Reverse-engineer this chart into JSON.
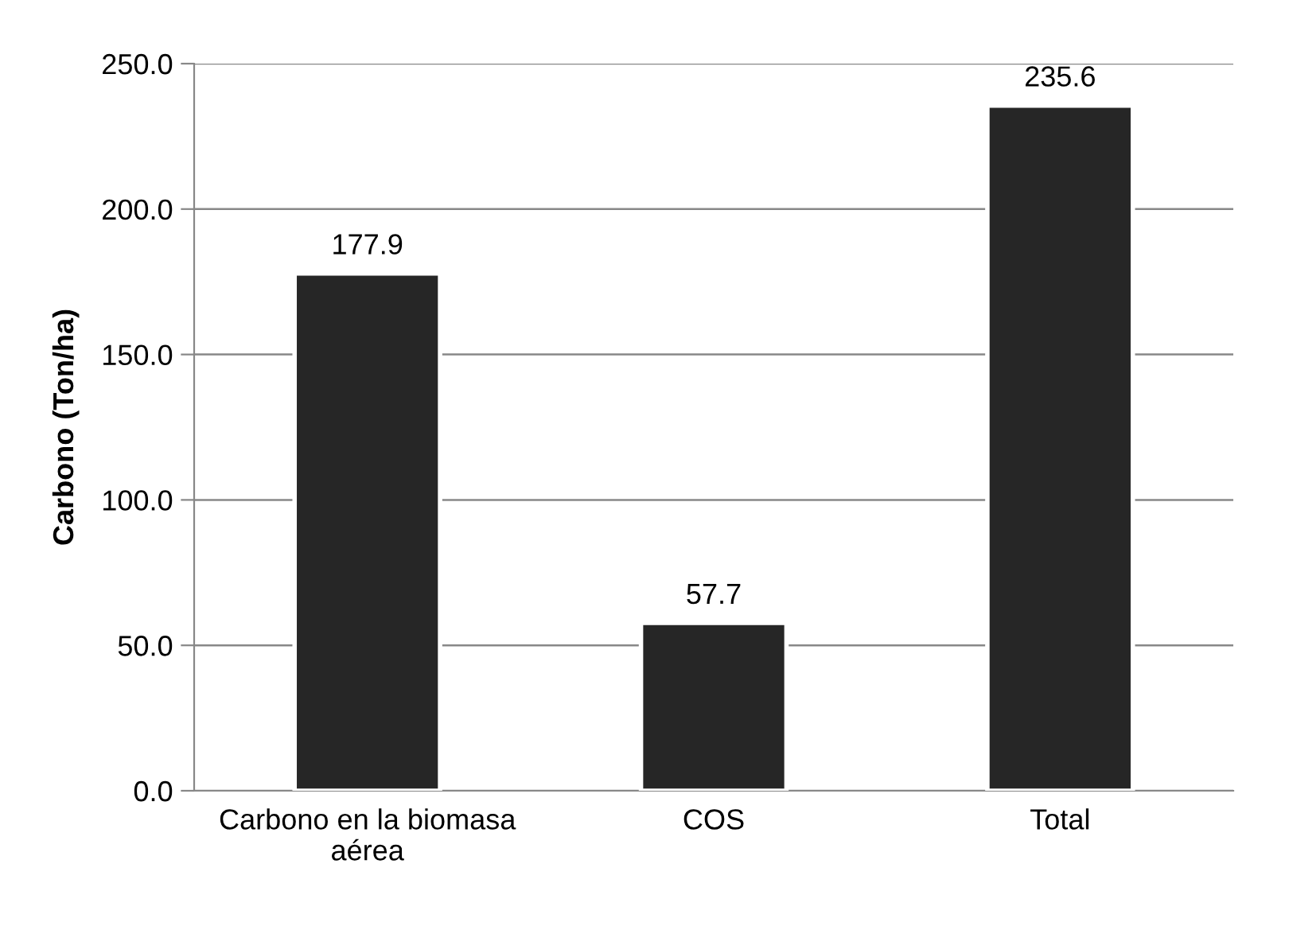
{
  "chart_data": {
    "type": "bar",
    "ylabel": "Carbono (Ton/ha)",
    "categories": [
      "Carbono en la biomasa\naérea",
      "COS",
      "Total"
    ],
    "values": [
      177.9,
      57.7,
      235.6
    ],
    "color": "#262626",
    "data_labels": true,
    "ylim": [
      0,
      250
    ],
    "yticks": [
      {
        "value": 0,
        "label": "0.0"
      },
      {
        "value": 50,
        "label": "50.0"
      },
      {
        "value": 100,
        "label": "100.0"
      },
      {
        "value": 150,
        "label": "150.0"
      },
      {
        "value": 200,
        "label": "200.0"
      },
      {
        "value": 250,
        "label": "250.0"
      }
    ],
    "grid": "y"
  }
}
